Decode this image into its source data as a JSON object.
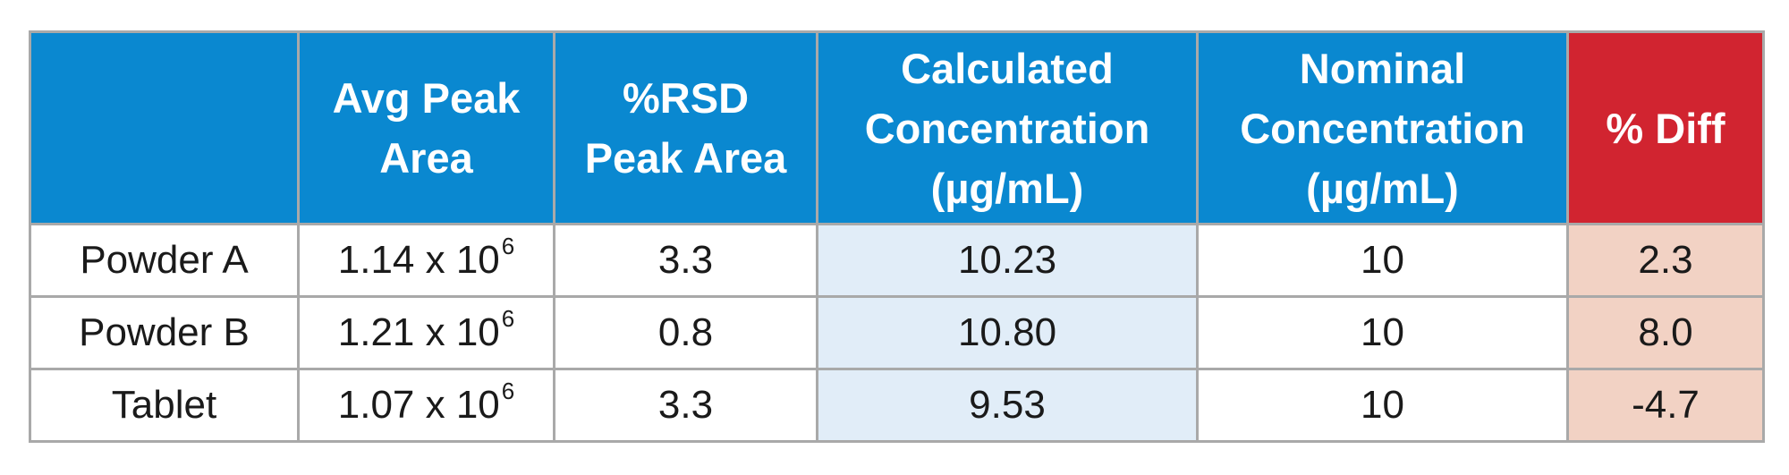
{
  "table": {
    "headers": {
      "sample": "",
      "avg_peak_area": [
        "Avg Peak",
        "Area"
      ],
      "rsd_peak_area": [
        "%RSD",
        "Peak Area"
      ],
      "calculated_concentration": [
        "Calculated",
        "Concentration",
        "(µg/mL)"
      ],
      "nominal_concentration": [
        "Nominal",
        "Concentration",
        "(µg/mL)"
      ],
      "pct_diff": [
        "% Diff"
      ]
    },
    "rows": [
      {
        "sample": "Powder A",
        "avg_peak_area": {
          "mantissa": "1.14 x 10",
          "exponent": "6"
        },
        "rsd_peak_area": "3.3",
        "calculated_concentration": "10.23",
        "nominal_concentration": "10",
        "pct_diff": "2.3"
      },
      {
        "sample": "Powder B",
        "avg_peak_area": {
          "mantissa": "1.21 x 10",
          "exponent": "6"
        },
        "rsd_peak_area": "0.8",
        "calculated_concentration": "10.80",
        "nominal_concentration": "10",
        "pct_diff": "8.0"
      },
      {
        "sample": "Tablet",
        "avg_peak_area": {
          "mantissa": "1.07 x 10",
          "exponent": "6"
        },
        "rsd_peak_area": "3.3",
        "calculated_concentration": "9.53",
        "nominal_concentration": "10",
        "pct_diff": "-4.7"
      }
    ]
  },
  "colors": {
    "header_blue": "#0a88d0",
    "header_red": "#d12430",
    "calculated_cell_bg": "#e1edf8",
    "diff_cell_bg": "#f2d2c4",
    "grid_border": "#a9a9a9"
  }
}
